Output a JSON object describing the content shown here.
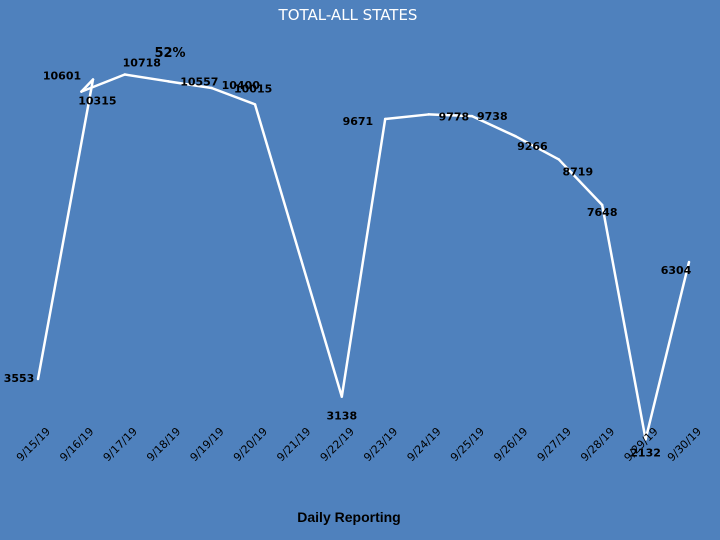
{
  "chart_data": {
    "type": "line",
    "title": "TOTAL-ALL STATES",
    "annotation": "52%",
    "xlabel": "Daily Reporting",
    "ylabel": "",
    "categories": [
      "9/15/19",
      "9/16/19",
      "9/17/19",
      "9/18/19",
      "9/19/19",
      "9/20/19",
      "9/21/19",
      "9/22/19",
      "9/23/19",
      "9/24/19",
      "9/25/19",
      "9/26/19",
      "9/27/19",
      "9/28/19",
      "9/29/19",
      "9/30/19"
    ],
    "x": [
      "9/15/19",
      "9/15/19",
      "9/16/19",
      "9/17/19",
      "9/18/19",
      "9/19/19",
      "9/20/19",
      "9/22/19",
      "9/23/19",
      "9/24/19",
      "9/25/19",
      "9/26/19",
      "9/27/19",
      "9/28/19",
      "9/29/19",
      "9/30/19"
    ],
    "series": [
      {
        "values": [
          3553,
          10601,
          10315,
          10718,
          10557,
          10400,
          10015,
          3138,
          9671,
          9778,
          9738,
          9266,
          8719,
          7648,
          2132,
          6304
        ]
      }
    ],
    "ylim": [
      0,
      12500
    ],
    "grid": false,
    "legend": "none",
    "line_color": "#ffffff",
    "background_color": "#4f81bd"
  }
}
